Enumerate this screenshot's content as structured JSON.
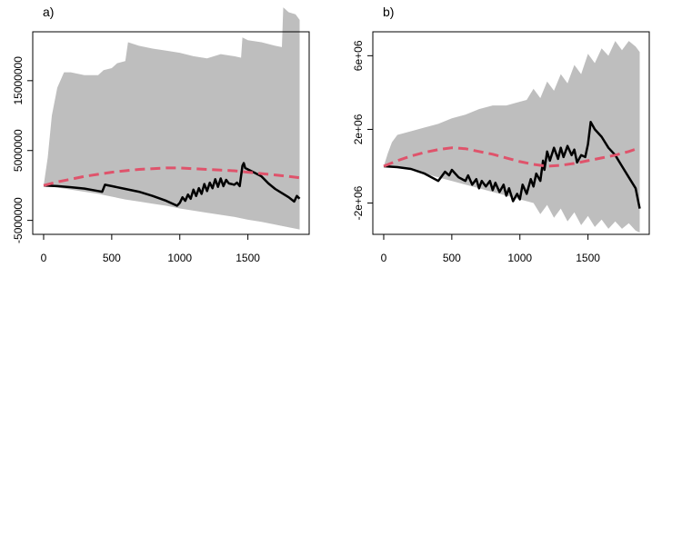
{
  "chart_data": [
    {
      "type": "area",
      "panel_label": "a)",
      "title": "",
      "xlabel": "",
      "ylabel": "",
      "xlim": [
        -80,
        1950
      ],
      "ylim": [
        -7000000,
        22000000
      ],
      "x_ticks": [
        0,
        500,
        1000,
        1500
      ],
      "x_tick_labels": [
        "0",
        "500",
        "1000",
        "1500"
      ],
      "y_ticks": [
        -5000000,
        5000000,
        15000000
      ],
      "y_tick_labels": [
        "-5000000",
        "5000000",
        "15000000"
      ],
      "grid": false,
      "colors": {
        "band": "#bebebe",
        "observed": "#000000",
        "expected": "#df536b"
      },
      "series": [
        {
          "role": "band-upper",
          "x": [
            0,
            30,
            60,
            100,
            150,
            200,
            300,
            400,
            440,
            500,
            540,
            600,
            620,
            700,
            800,
            900,
            1000,
            1100,
            1200,
            1300,
            1400,
            1450,
            1460,
            1500,
            1600,
            1700,
            1750,
            1760,
            1800,
            1850,
            1880
          ],
          "y": [
            0,
            4000000,
            10000000,
            14000000,
            16200000,
            16200000,
            15800000,
            15800000,
            16500000,
            16800000,
            17500000,
            17800000,
            20500000,
            20000000,
            19600000,
            19300000,
            19000000,
            18500000,
            18200000,
            18800000,
            18500000,
            18300000,
            21200000,
            20800000,
            20500000,
            20000000,
            19800000,
            25500000,
            24800000,
            24500000,
            23700000
          ]
        },
        {
          "role": "band-lower",
          "x": [
            0,
            100,
            200,
            300,
            400,
            500,
            600,
            700,
            800,
            900,
            1000,
            1100,
            1200,
            1300,
            1400,
            1500,
            1600,
            1700,
            1800,
            1880
          ],
          "y": [
            0,
            -300000,
            -600000,
            -900000,
            -1200000,
            -1600000,
            -2000000,
            -2300000,
            -2600000,
            -2900000,
            -3300000,
            -3600000,
            -3900000,
            -4200000,
            -4500000,
            -4900000,
            -5200000,
            -5600000,
            -6000000,
            -6300000
          ]
        },
        {
          "role": "observed",
          "x": [
            0,
            100,
            200,
            300,
            400,
            430,
            450,
            500,
            600,
            700,
            800,
            900,
            980,
            1000,
            1020,
            1040,
            1060,
            1080,
            1100,
            1120,
            1140,
            1160,
            1180,
            1200,
            1220,
            1240,
            1260,
            1280,
            1300,
            1320,
            1340,
            1360,
            1380,
            1400,
            1420,
            1440,
            1460,
            1470,
            1480,
            1500,
            1550,
            1600,
            1650,
            1700,
            1750,
            1800,
            1840,
            1860,
            1880
          ],
          "y": [
            0,
            -100000,
            -250000,
            -450000,
            -800000,
            -900000,
            100000,
            -100000,
            -500000,
            -900000,
            -1500000,
            -2200000,
            -2900000,
            -2500000,
            -1700000,
            -2200000,
            -1300000,
            -1900000,
            -600000,
            -1500000,
            -400000,
            -1200000,
            200000,
            -800000,
            400000,
            -400000,
            900000,
            -200000,
            1000000,
            -100000,
            800000,
            300000,
            200000,
            100000,
            400000,
            -100000,
            2800000,
            3200000,
            2500000,
            2300000,
            1800000,
            1300000,
            300000,
            -500000,
            -1100000,
            -1700000,
            -2300000,
            -1500000,
            -1900000
          ]
        },
        {
          "role": "expected",
          "x": [
            0,
            100,
            200,
            300,
            400,
            500,
            600,
            700,
            800,
            900,
            1000,
            1100,
            1200,
            1300,
            1400,
            1500,
            1600,
            1700,
            1800,
            1880
          ],
          "y": [
            0,
            500000,
            900000,
            1300000,
            1600000,
            1900000,
            2100000,
            2300000,
            2400000,
            2500000,
            2500000,
            2400000,
            2300000,
            2200000,
            2100000,
            1900000,
            1700000,
            1500000,
            1300000,
            1100000
          ]
        }
      ]
    },
    {
      "type": "area",
      "panel_label": "b)",
      "title": "",
      "xlabel": "",
      "ylabel": "",
      "xlim": [
        -80,
        1950
      ],
      "ylim": [
        -3700000,
        7300000
      ],
      "x_ticks": [
        0,
        500,
        1000,
        1500
      ],
      "x_tick_labels": [
        "0",
        "500",
        "1000",
        "1500"
      ],
      "y_ticks": [
        -2000000,
        2000000,
        6000000
      ],
      "y_tick_labels": [
        "-2e+06",
        "2e+06",
        "6e+06"
      ],
      "grid": false,
      "colors": {
        "band": "#bebebe",
        "observed": "#000000",
        "expected": "#df536b"
      },
      "series": [
        {
          "role": "band-upper",
          "x": [
            0,
            30,
            60,
            100,
            200,
            300,
            400,
            500,
            600,
            700,
            800,
            900,
            1000,
            1050,
            1100,
            1150,
            1200,
            1250,
            1300,
            1350,
            1400,
            1450,
            1500,
            1550,
            1600,
            1650,
            1700,
            1750,
            1800,
            1850,
            1880
          ],
          "y": [
            0,
            700000,
            1300000,
            1700000,
            1900000,
            2100000,
            2300000,
            2600000,
            2800000,
            3100000,
            3300000,
            3300000,
            3500000,
            3600000,
            4200000,
            3700000,
            4600000,
            4100000,
            5000000,
            4500000,
            5500000,
            5000000,
            6100000,
            5600000,
            6400000,
            6000000,
            6800000,
            6300000,
            6800000,
            6500000,
            6200000
          ]
        },
        {
          "role": "band-lower",
          "x": [
            0,
            100,
            200,
            300,
            400,
            500,
            600,
            700,
            800,
            900,
            1000,
            1100,
            1150,
            1200,
            1250,
            1300,
            1350,
            1400,
            1450,
            1500,
            1550,
            1600,
            1650,
            1700,
            1750,
            1800,
            1850,
            1880
          ],
          "y": [
            0,
            -100000,
            -200000,
            -400000,
            -600000,
            -800000,
            -1000000,
            -1200000,
            -1400000,
            -1600000,
            -1800000,
            -2000000,
            -2600000,
            -2100000,
            -2800000,
            -2300000,
            -3000000,
            -2500000,
            -3200000,
            -2700000,
            -3300000,
            -2900000,
            -3400000,
            -3000000,
            -3400000,
            -3100000,
            -3500000,
            -3600000
          ]
        },
        {
          "role": "observed",
          "x": [
            0,
            100,
            200,
            300,
            400,
            420,
            450,
            480,
            500,
            550,
            600,
            620,
            650,
            680,
            700,
            720,
            750,
            780,
            800,
            820,
            850,
            880,
            900,
            920,
            950,
            980,
            1000,
            1020,
            1050,
            1080,
            1100,
            1120,
            1150,
            1170,
            1180,
            1200,
            1220,
            1250,
            1280,
            1300,
            1320,
            1350,
            1380,
            1400,
            1420,
            1450,
            1480,
            1500,
            1520,
            1550,
            1600,
            1650,
            1700,
            1750,
            1800,
            1850,
            1880
          ],
          "y": [
            0,
            -50000,
            -150000,
            -400000,
            -800000,
            -600000,
            -300000,
            -500000,
            -200000,
            -600000,
            -800000,
            -500000,
            -1000000,
            -700000,
            -1200000,
            -800000,
            -1100000,
            -800000,
            -1300000,
            -900000,
            -1400000,
            -1000000,
            -1600000,
            -1200000,
            -1900000,
            -1500000,
            -1800000,
            -1000000,
            -1500000,
            -700000,
            -1100000,
            -400000,
            -800000,
            300000,
            -200000,
            800000,
            300000,
            1000000,
            400000,
            1000000,
            500000,
            1100000,
            600000,
            900000,
            200000,
            600000,
            500000,
            1200000,
            2400000,
            2000000,
            1600000,
            1000000,
            600000,
            0,
            -600000,
            -1200000,
            -2300000
          ]
        },
        {
          "role": "expected",
          "x": [
            0,
            100,
            200,
            300,
            400,
            500,
            600,
            700,
            800,
            900,
            1000,
            1100,
            1200,
            1300,
            1400,
            1500,
            1600,
            1700,
            1800,
            1880
          ],
          "y": [
            0,
            300000,
            550000,
            750000,
            900000,
            1000000,
            950000,
            800000,
            650000,
            450000,
            250000,
            100000,
            0,
            50000,
            150000,
            300000,
            450000,
            600000,
            800000,
            1000000
          ]
        }
      ]
    }
  ]
}
